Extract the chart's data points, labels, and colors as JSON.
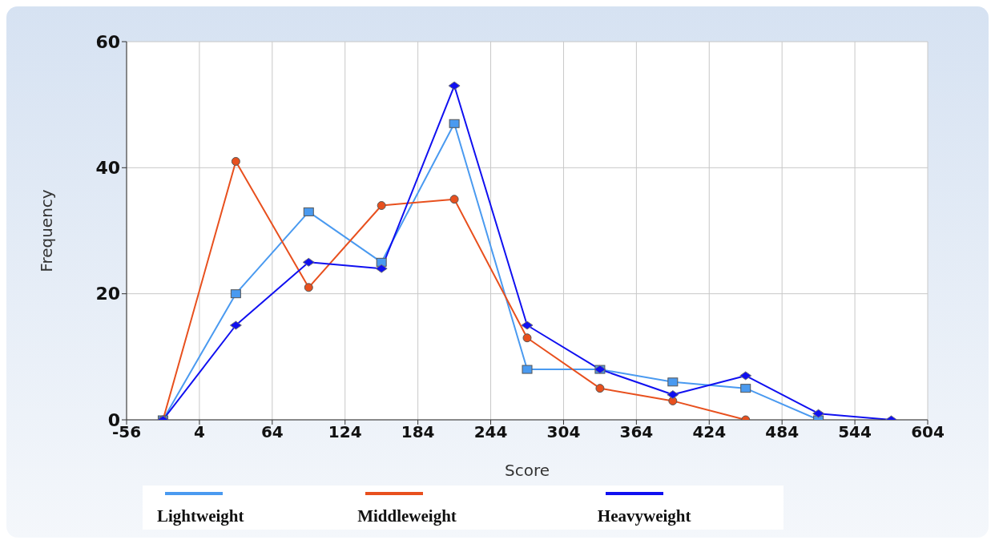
{
  "chart_data": {
    "type": "line",
    "xlabel": "Score",
    "ylabel": "Frequency",
    "x": [
      -26,
      34,
      94,
      154,
      214,
      274,
      334,
      394,
      454,
      514,
      574
    ],
    "series": [
      {
        "name": "Lightweight",
        "color": "#4a9af0",
        "marker": "square",
        "values": [
          0,
          20,
          33,
          25,
          47,
          8,
          8,
          6,
          5,
          0,
          null
        ]
      },
      {
        "name": "Middleweight",
        "color": "#e8501e",
        "marker": "circle",
        "values": [
          0,
          41,
          21,
          34,
          35,
          13,
          5,
          3,
          0,
          null,
          null
        ]
      },
      {
        "name": "Heavyweight",
        "color": "#1010f0",
        "marker": "diamond",
        "values": [
          0,
          15,
          25,
          24,
          53,
          15,
          8,
          4,
          7,
          1,
          0
        ]
      }
    ],
    "xlim": [
      -56,
      604
    ],
    "xticks": [
      -56,
      4,
      64,
      124,
      184,
      244,
      304,
      364,
      424,
      484,
      544,
      604
    ],
    "ylim": [
      0,
      60
    ],
    "yticks": [
      0,
      20,
      40,
      60
    ],
    "grid": true,
    "legend": "bottom"
  }
}
